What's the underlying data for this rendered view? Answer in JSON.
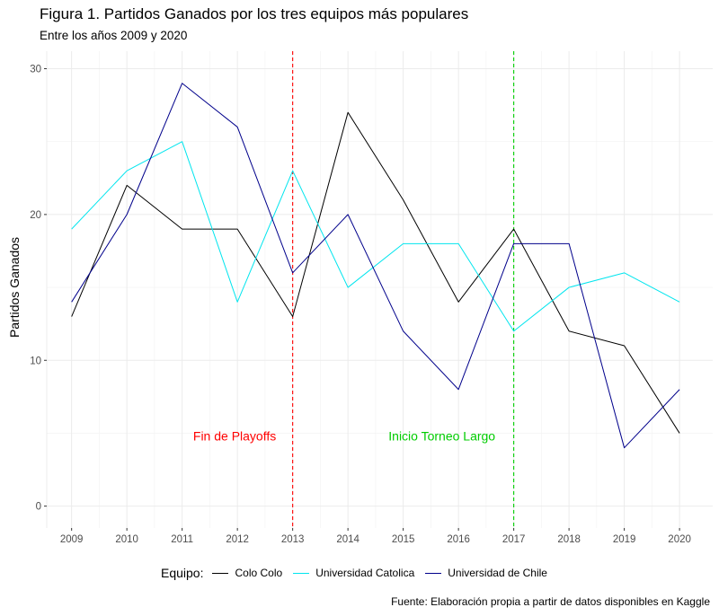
{
  "chart_data": {
    "type": "line",
    "title": "Figura 1. Partidos Ganados por los tres equipos más populares",
    "subtitle": "Entre los años 2009 y 2020",
    "ylabel": "Partidos Ganados",
    "xlabel": "",
    "caption": "Fuente: Elaboración propia a partir de datos disponibles en Kaggle",
    "x": [
      2009,
      2010,
      2011,
      2012,
      2013,
      2014,
      2015,
      2016,
      2017,
      2018,
      2019,
      2020
    ],
    "xlim": [
      2008.55,
      2020.6
    ],
    "ylim": [
      -1.5,
      31.2
    ],
    "yticks": [
      0,
      10,
      20,
      30
    ],
    "grid": true,
    "legend": {
      "title": "Equipo:",
      "position": "bottom"
    },
    "series": [
      {
        "name": "Colo Colo",
        "color": "#000000",
        "values": [
          13,
          22,
          19,
          19,
          13,
          27,
          21,
          14,
          19,
          12,
          11,
          5
        ]
      },
      {
        "name": "Universidad Catolica",
        "color": "#00e5ee",
        "values": [
          19,
          23,
          25,
          14,
          23,
          15,
          18,
          18,
          12,
          15,
          16,
          14
        ]
      },
      {
        "name": "Universidad de Chile",
        "color": "#00008b",
        "values": [
          14,
          20,
          29,
          26,
          16,
          20,
          12,
          8,
          18,
          18,
          4,
          8
        ]
      }
    ],
    "vlines": [
      {
        "x": 2013,
        "color": "#ff0000",
        "label": "Fin de Playoffs",
        "label_x": 2011.95,
        "label_y": 4.8
      },
      {
        "x": 2017,
        "color": "#00cd00",
        "label": "Inicio Torneo Largo",
        "label_x": 2015.7,
        "label_y": 4.8
      }
    ]
  }
}
